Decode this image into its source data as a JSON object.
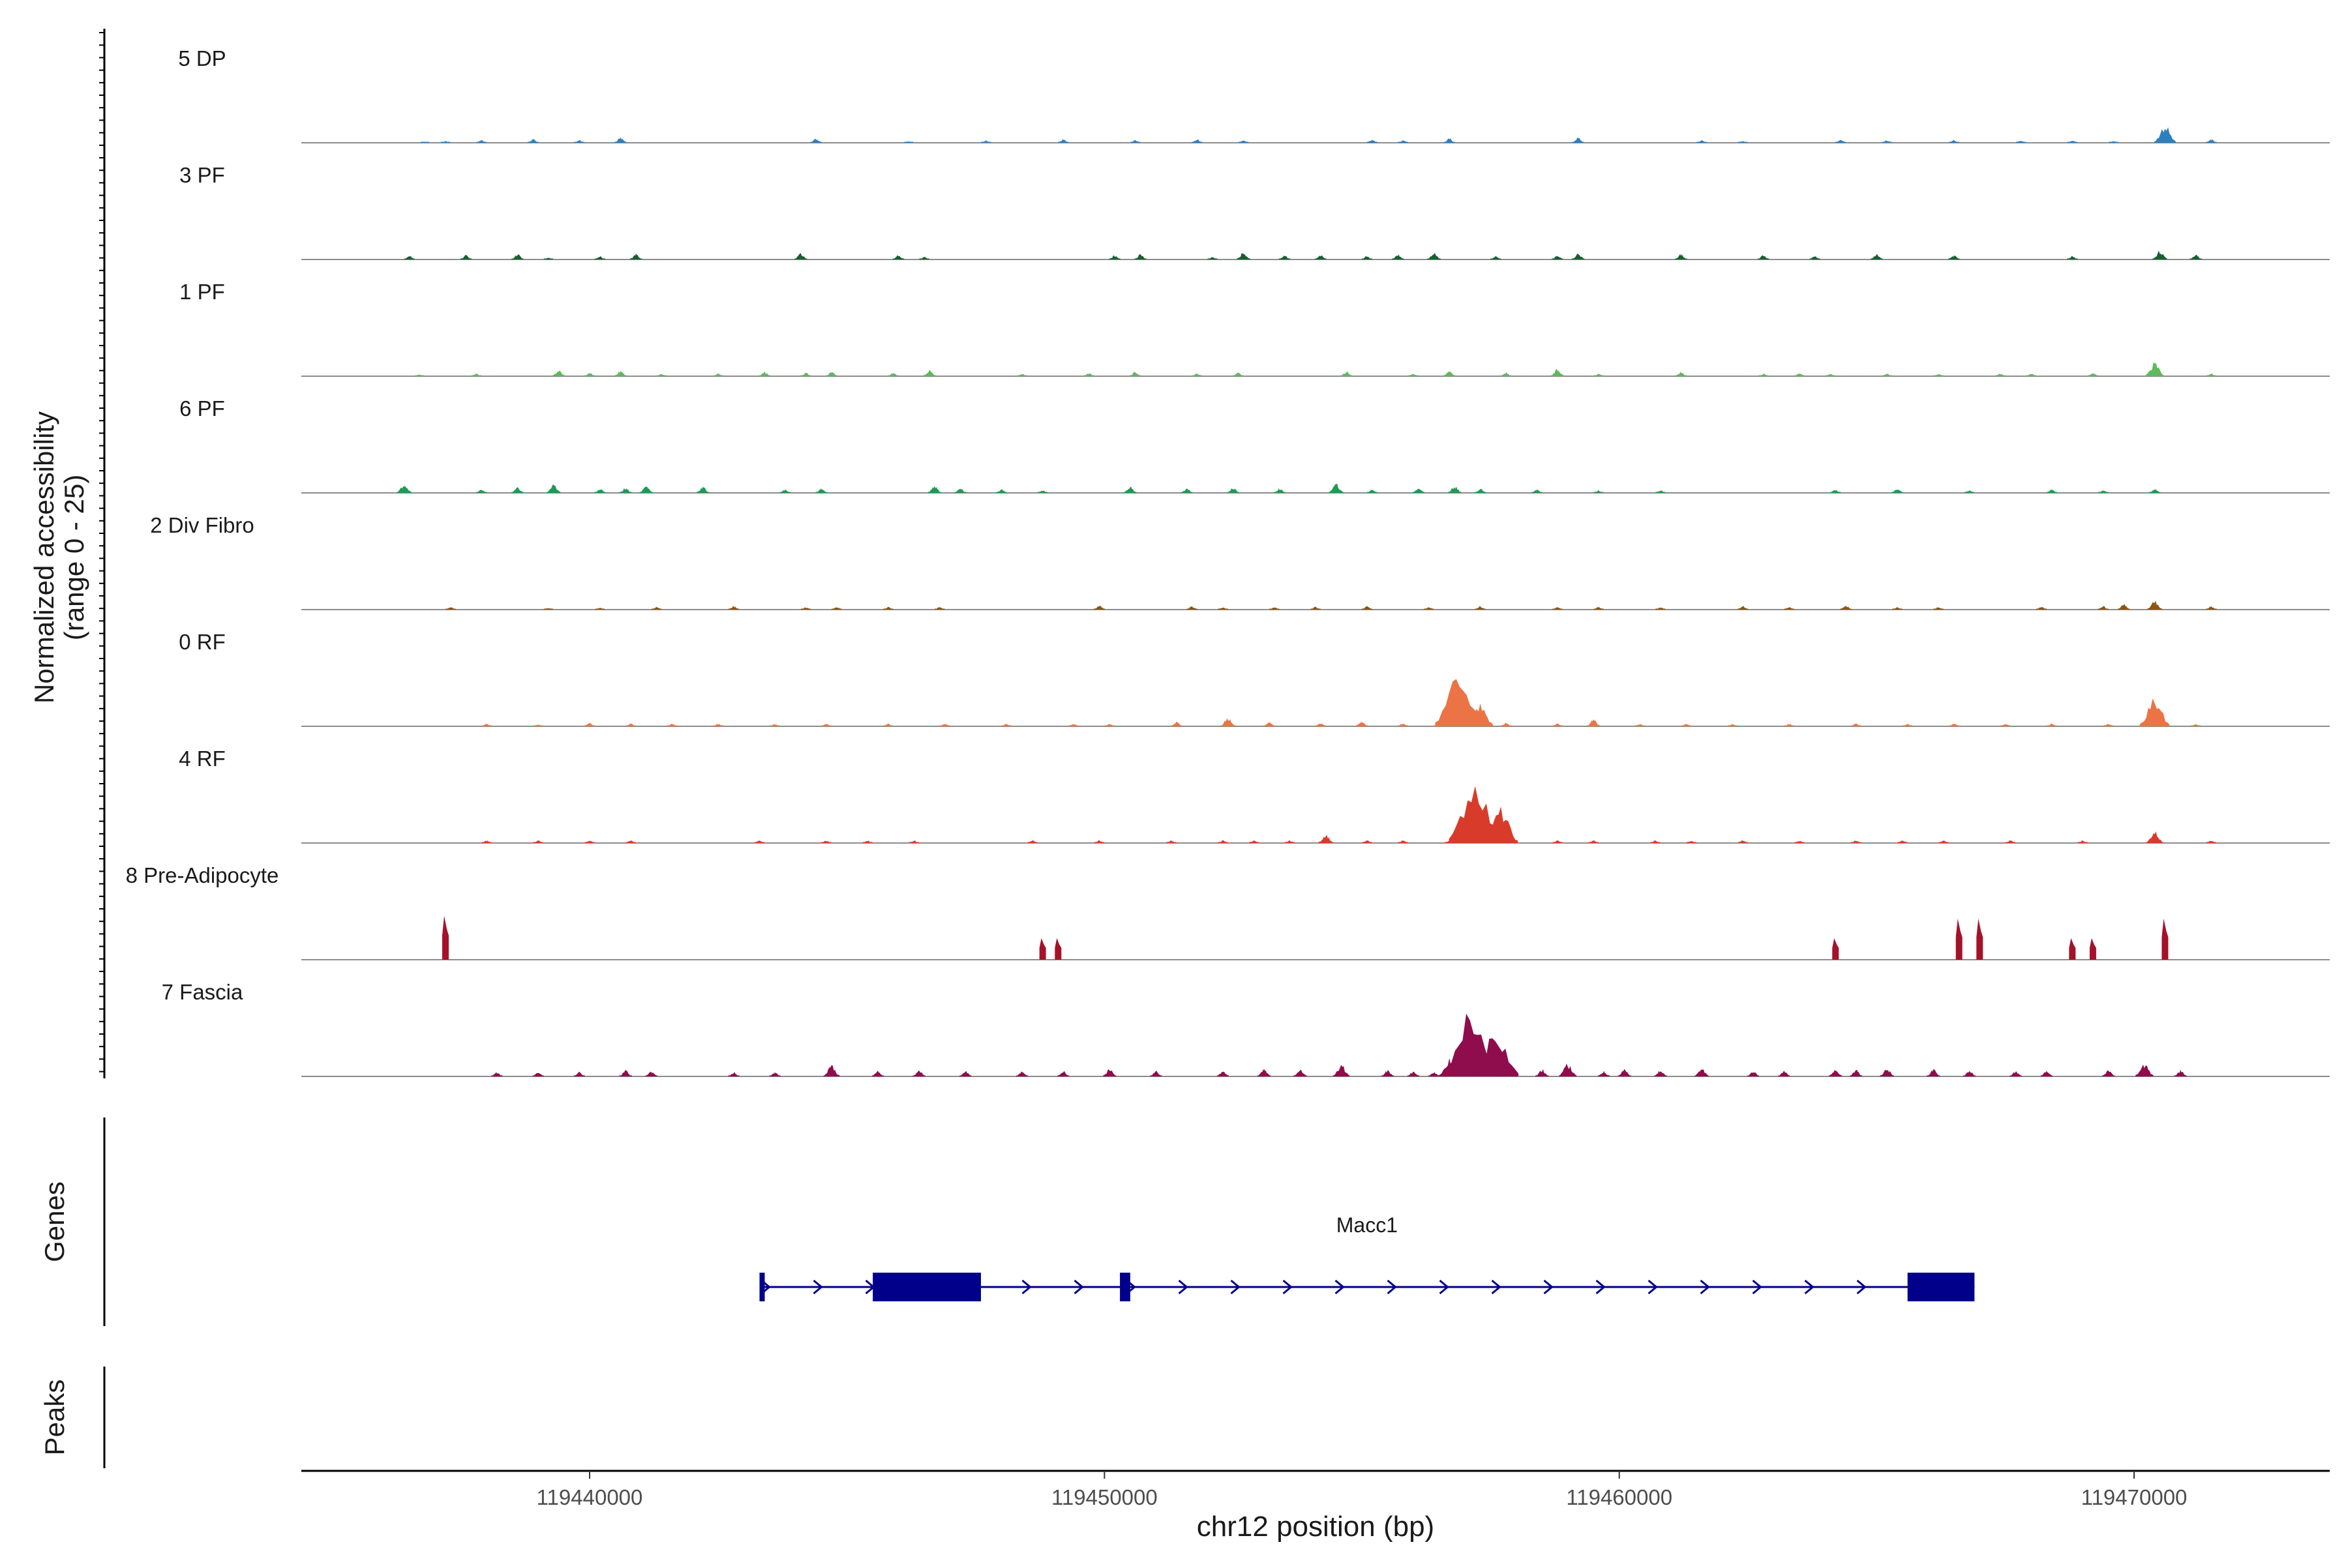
{
  "chart_data": {
    "type": "area",
    "chromosome": "chr12",
    "xlim": [
      119434400,
      119473800
    ],
    "yrange_text": "(range 0 - 25)",
    "ylabel": "Normalized accessibility",
    "xlabel": "chr12 position (bp)",
    "x_ticks": [
      119440000,
      119450000,
      119460000,
      119470000
    ],
    "x_tick_labels": [
      "119440000",
      "119450000",
      "119460000",
      "119470000"
    ],
    "panel_labels": {
      "genes": "Genes",
      "peaks": "Peaks"
    },
    "series": [
      {
        "name": "5 DP",
        "color": "#2f7fbd",
        "points": [
          [
            119436800,
            1
          ],
          [
            119437200,
            2
          ],
          [
            119437900,
            3
          ],
          [
            119438900,
            4
          ],
          [
            119439800,
            3
          ],
          [
            119440600,
            6
          ],
          [
            119444400,
            5
          ],
          [
            119446200,
            2
          ],
          [
            119447700,
            3
          ],
          [
            119449200,
            4
          ],
          [
            119450600,
            3
          ],
          [
            119451800,
            4
          ],
          [
            119452700,
            3
          ],
          [
            119455200,
            4
          ],
          [
            119455800,
            3
          ],
          [
            119456700,
            5
          ],
          [
            119459200,
            6
          ],
          [
            119461600,
            3
          ],
          [
            119462400,
            2
          ],
          [
            119464300,
            4
          ],
          [
            119465200,
            3
          ],
          [
            119466500,
            3
          ],
          [
            119467800,
            3
          ],
          [
            119468800,
            3
          ],
          [
            119469600,
            2
          ],
          [
            119470600,
            20
          ],
          [
            119471500,
            4
          ]
        ]
      },
      {
        "name": "3 PF",
        "color": "#14612f",
        "points": [
          [
            119436500,
            4
          ],
          [
            119437600,
            5
          ],
          [
            119438600,
            6
          ],
          [
            119439200,
            2
          ],
          [
            119440200,
            4
          ],
          [
            119440900,
            6
          ],
          [
            119444100,
            7
          ],
          [
            119446000,
            5
          ],
          [
            119446500,
            3
          ],
          [
            119450200,
            5
          ],
          [
            119450700,
            6
          ],
          [
            119452100,
            3
          ],
          [
            119452700,
            8
          ],
          [
            119453500,
            5
          ],
          [
            119454200,
            5
          ],
          [
            119455100,
            4
          ],
          [
            119455700,
            6
          ],
          [
            119456400,
            8
          ],
          [
            119457600,
            4
          ],
          [
            119458800,
            5
          ],
          [
            119459200,
            7
          ],
          [
            119461200,
            6
          ],
          [
            119462800,
            5
          ],
          [
            119463800,
            4
          ],
          [
            119465000,
            6
          ],
          [
            119466500,
            5
          ],
          [
            119468800,
            4
          ],
          [
            119470500,
            10
          ],
          [
            119471200,
            6
          ]
        ]
      },
      {
        "name": "1 PF",
        "color": "#5dba5a",
        "points": [
          [
            119436700,
            2
          ],
          [
            119437800,
            3
          ],
          [
            119439400,
            7
          ],
          [
            119440000,
            4
          ],
          [
            119440600,
            6
          ],
          [
            119441400,
            3
          ],
          [
            119442500,
            3
          ],
          [
            119443400,
            5
          ],
          [
            119444200,
            4
          ],
          [
            119444700,
            5
          ],
          [
            119445900,
            4
          ],
          [
            119446600,
            7
          ],
          [
            119448400,
            3
          ],
          [
            119449700,
            4
          ],
          [
            119450600,
            5
          ],
          [
            119451800,
            3
          ],
          [
            119452600,
            4
          ],
          [
            119454700,
            5
          ],
          [
            119456000,
            3
          ],
          [
            119456700,
            6
          ],
          [
            119457800,
            4
          ],
          [
            119458800,
            8
          ],
          [
            119459600,
            3
          ],
          [
            119461200,
            5
          ],
          [
            119462800,
            3
          ],
          [
            119463500,
            4
          ],
          [
            119464100,
            3
          ],
          [
            119465200,
            3
          ],
          [
            119466200,
            3
          ],
          [
            119467400,
            3
          ],
          [
            119468000,
            3
          ],
          [
            119469200,
            4
          ],
          [
            119470400,
            15
          ],
          [
            119471500,
            3
          ]
        ]
      },
      {
        "name": "6 PF",
        "color": "#1f9a56",
        "points": [
          [
            119436400,
            10
          ],
          [
            119437900,
            4
          ],
          [
            119438600,
            6
          ],
          [
            119439300,
            9
          ],
          [
            119440200,
            5
          ],
          [
            119440700,
            6
          ],
          [
            119441100,
            8
          ],
          [
            119442200,
            7
          ],
          [
            119443800,
            4
          ],
          [
            119444500,
            5
          ],
          [
            119446700,
            8
          ],
          [
            119447200,
            5
          ],
          [
            119448000,
            4
          ],
          [
            119448800,
            3
          ],
          [
            119450500,
            7
          ],
          [
            119451600,
            5
          ],
          [
            119452500,
            6
          ],
          [
            119453400,
            5
          ],
          [
            119454500,
            10
          ],
          [
            119455200,
            4
          ],
          [
            119456100,
            6
          ],
          [
            119456800,
            8
          ],
          [
            119457300,
            5
          ],
          [
            119458400,
            4
          ],
          [
            119459600,
            3
          ],
          [
            119460800,
            3
          ],
          [
            119464200,
            4
          ],
          [
            119465400,
            5
          ],
          [
            119466800,
            3
          ],
          [
            119468400,
            4
          ],
          [
            119469400,
            3
          ],
          [
            119470400,
            5
          ]
        ]
      },
      {
        "name": "2 Div Fibro",
        "color": "#8b5513",
        "points": [
          [
            119437300,
            3
          ],
          [
            119439200,
            2
          ],
          [
            119440200,
            2
          ],
          [
            119441300,
            3
          ],
          [
            119442800,
            4
          ],
          [
            119444200,
            3
          ],
          [
            119444800,
            3
          ],
          [
            119445800,
            3
          ],
          [
            119446800,
            3
          ],
          [
            119449900,
            5
          ],
          [
            119451700,
            4
          ],
          [
            119452300,
            3
          ],
          [
            119453300,
            3
          ],
          [
            119454100,
            3
          ],
          [
            119455100,
            4
          ],
          [
            119456300,
            3
          ],
          [
            119457300,
            4
          ],
          [
            119458800,
            3
          ],
          [
            119459600,
            3
          ],
          [
            119460800,
            3
          ],
          [
            119462400,
            4
          ],
          [
            119463300,
            3
          ],
          [
            119464400,
            5
          ],
          [
            119465400,
            3
          ],
          [
            119466200,
            3
          ],
          [
            119468200,
            4
          ],
          [
            119469400,
            4
          ],
          [
            119469800,
            6
          ],
          [
            119470400,
            10
          ],
          [
            119471500,
            4
          ]
        ]
      },
      {
        "name": "0 RF",
        "color": "#ec7346",
        "points": [
          [
            119438000,
            3
          ],
          [
            119439000,
            2
          ],
          [
            119440000,
            4
          ],
          [
            119440800,
            3
          ],
          [
            119441600,
            3
          ],
          [
            119442500,
            3
          ],
          [
            119443600,
            3
          ],
          [
            119444600,
            3
          ],
          [
            119445800,
            3
          ],
          [
            119446900,
            3
          ],
          [
            119448100,
            3
          ],
          [
            119449400,
            3
          ],
          [
            119450100,
            3
          ],
          [
            119451400,
            5
          ],
          [
            119452400,
            10
          ],
          [
            119453200,
            5
          ],
          [
            119454200,
            4
          ],
          [
            119455000,
            6
          ],
          [
            119455800,
            4
          ],
          [
            119456500,
            4
          ],
          [
            119456900,
            60
          ],
          [
            119457300,
            26
          ],
          [
            119457800,
            4
          ],
          [
            119458800,
            3
          ],
          [
            119459500,
            8
          ],
          [
            119460400,
            3
          ],
          [
            119461300,
            3
          ],
          [
            119462200,
            3
          ],
          [
            119463300,
            3
          ],
          [
            119464600,
            3
          ],
          [
            119465600,
            3
          ],
          [
            119466500,
            3
          ],
          [
            119467500,
            3
          ],
          [
            119468400,
            3
          ],
          [
            119469500,
            3
          ],
          [
            119470400,
            32
          ],
          [
            119471200,
            3
          ]
        ]
      },
      {
        "name": "4 RF",
        "color": "#d93b2a",
        "points": [
          [
            119438000,
            3
          ],
          [
            119439000,
            3
          ],
          [
            119440000,
            3
          ],
          [
            119440800,
            3
          ],
          [
            119443300,
            3
          ],
          [
            119444600,
            3
          ],
          [
            119445400,
            3
          ],
          [
            119446300,
            3
          ],
          [
            119448600,
            3
          ],
          [
            119449900,
            3
          ],
          [
            119451300,
            3
          ],
          [
            119452300,
            3
          ],
          [
            119452900,
            3
          ],
          [
            119453600,
            3
          ],
          [
            119454300,
            10
          ],
          [
            119455100,
            3
          ],
          [
            119455800,
            3
          ],
          [
            119456700,
            3
          ],
          [
            119457200,
            71
          ],
          [
            119457700,
            38
          ],
          [
            119458800,
            3
          ],
          [
            119459500,
            3
          ],
          [
            119460700,
            3
          ],
          [
            119461400,
            3
          ],
          [
            119462400,
            3
          ],
          [
            119463500,
            3
          ],
          [
            119464600,
            3
          ],
          [
            119465500,
            3
          ],
          [
            119466300,
            3
          ],
          [
            119467600,
            3
          ],
          [
            119469000,
            3
          ],
          [
            119470400,
            13
          ],
          [
            119471500,
            3
          ]
        ]
      },
      {
        "name": "8 Pre-Adipocyte",
        "color": "#a4122a",
        "points": [
          [
            119437200,
            45
          ],
          [
            119448800,
            22
          ],
          [
            119449100,
            22
          ],
          [
            119464200,
            22
          ],
          [
            119466600,
            42
          ],
          [
            119467000,
            42
          ],
          [
            119468800,
            22
          ],
          [
            119469200,
            22
          ],
          [
            119470600,
            42
          ]
        ]
      },
      {
        "name": "7 Fascia",
        "color": "#8f0c4d",
        "points": [
          [
            119438200,
            5
          ],
          [
            119439000,
            5
          ],
          [
            119439800,
            5
          ],
          [
            119440700,
            7
          ],
          [
            119441200,
            6
          ],
          [
            119442800,
            5
          ],
          [
            119443600,
            5
          ],
          [
            119444700,
            12
          ],
          [
            119445600,
            6
          ],
          [
            119446400,
            7
          ],
          [
            119447300,
            6
          ],
          [
            119448400,
            6
          ],
          [
            119449200,
            6
          ],
          [
            119450100,
            8
          ],
          [
            119451000,
            6
          ],
          [
            119452300,
            6
          ],
          [
            119453100,
            8
          ],
          [
            119453800,
            8
          ],
          [
            119454600,
            13
          ],
          [
            119455500,
            7
          ],
          [
            119456000,
            6
          ],
          [
            119456400,
            5
          ],
          [
            119456700,
            20
          ],
          [
            119457100,
            75
          ],
          [
            119457600,
            55
          ],
          [
            119458500,
            8
          ],
          [
            119459000,
            14
          ],
          [
            119459700,
            6
          ],
          [
            119460100,
            8
          ],
          [
            119460800,
            7
          ],
          [
            119461600,
            9
          ],
          [
            119462600,
            6
          ],
          [
            119463200,
            6
          ],
          [
            119464200,
            8
          ],
          [
            119464600,
            7
          ],
          [
            119465200,
            9
          ],
          [
            119466100,
            8
          ],
          [
            119466800,
            7
          ],
          [
            119467700,
            6
          ],
          [
            119468300,
            6
          ],
          [
            119469500,
            7
          ],
          [
            119470200,
            15
          ],
          [
            119470900,
            7
          ]
        ]
      }
    ],
    "gene": {
      "name": "Macc1",
      "strand": "+",
      "start": 119443300,
      "end": 119466900,
      "exons": [
        [
          119443300,
          119443400
        ],
        [
          119445500,
          119447600
        ],
        [
          119450300,
          119450500
        ],
        [
          119465600,
          119466900
        ]
      ]
    },
    "peaks": []
  }
}
